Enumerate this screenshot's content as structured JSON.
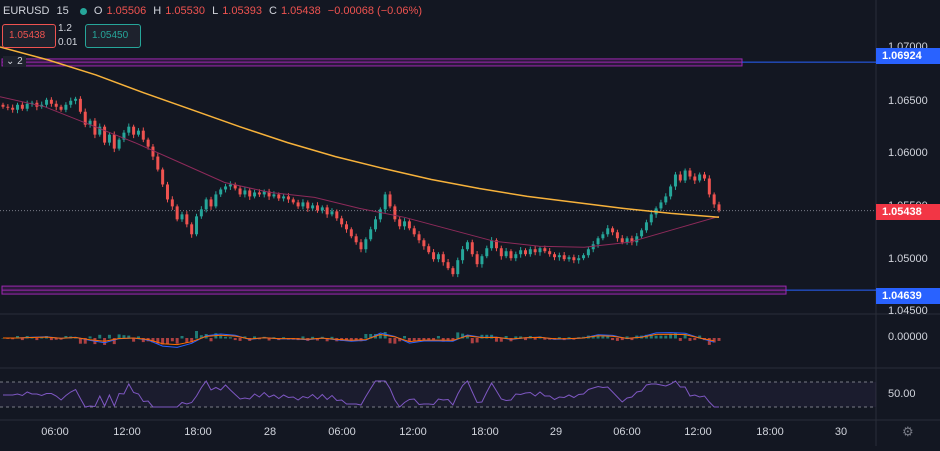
{
  "header": {
    "symbol": "EURUSD",
    "interval": "15",
    "open_label": "O",
    "open": "1.05506",
    "high_label": "H",
    "high": "1.05530",
    "low_label": "L",
    "low": "1.05393",
    "close_label": "C",
    "close": "1.05438",
    "change": "−0.00068 (−0.06%)"
  },
  "order": {
    "sell_price": "1.05438",
    "buy_price": "1.05450",
    "spread_top": "1.2",
    "spread_bottom": "0.01",
    "collapse_label": "2"
  },
  "price_axis": {
    "ticks": [
      "1.07000",
      "1.06500",
      "1.06000",
      "1.05500",
      "1.05000",
      "1.04500"
    ],
    "tags": {
      "upper_zone": "1.06924",
      "current": "1.05438",
      "lower_zone": "1.04639"
    }
  },
  "macd_axis": {
    "label": "0.00000"
  },
  "rsi_axis": {
    "label": "50.00"
  },
  "time_axis": [
    "06:00",
    "12:00",
    "18:00",
    "28",
    "06:00",
    "12:00",
    "18:00",
    "29",
    "06:00",
    "12:00",
    "18:00",
    "30"
  ],
  "colors": {
    "up": "#26a69a",
    "down": "#ef5350",
    "ma200": "#f7b23b",
    "ma50": "#8e2a5a",
    "zone": "#9c27b0",
    "rsi": "#7e57c2",
    "tag_blue": "#2962ff",
    "tag_red": "#f23645"
  },
  "icons": {
    "settings": "gear-icon",
    "dot": "market-status-dot"
  },
  "chart_data": {
    "type": "candlestick",
    "price_range": [
      1.0442,
      1.0715
    ],
    "current_price": 1.05438,
    "zones": [
      {
        "low": 1.06895,
        "high": 1.0696
      },
      {
        "low": 1.046,
        "high": 1.0468
      }
    ],
    "closes": [
      1.0648,
      1.0647,
      1.0645,
      1.065,
      1.0646,
      1.0651,
      1.0652,
      1.0648,
      1.065,
      1.0655,
      1.0651,
      1.0648,
      1.0645,
      1.065,
      1.0654,
      1.0656,
      1.0643,
      1.063,
      1.0634,
      1.062,
      1.0628,
      1.0612,
      1.062,
      1.0606,
      1.0615,
      1.0622,
      1.0628,
      1.062,
      1.0624,
      1.0615,
      1.0608,
      1.0598,
      1.0585,
      1.057,
      1.0555,
      1.0548,
      1.0535,
      1.054,
      1.053,
      1.052,
      1.0538,
      1.0545,
      1.0555,
      1.0548,
      1.056,
      1.0565,
      1.0568,
      1.057,
      1.0566,
      1.056,
      1.0564,
      1.0558,
      1.0562,
      1.056,
      1.0563,
      1.0558,
      1.056,
      1.0556,
      1.0558,
      1.0555,
      1.0552,
      1.0548,
      1.0552,
      1.0546,
      1.0549,
      1.0544,
      1.0547,
      1.054,
      1.0543,
      1.0536,
      1.053,
      1.0525,
      1.0518,
      1.0512,
      1.0505,
      1.0515,
      1.0525,
      1.0535,
      1.0545,
      1.056,
      1.0548,
      1.0535,
      1.0528,
      1.0533,
      1.0526,
      1.052,
      1.0514,
      1.0508,
      1.0502,
      1.0495,
      1.05,
      1.0492,
      1.0486,
      1.048,
      1.0494,
      1.0505,
      1.0512,
      1.05,
      1.049,
      1.0498,
      1.0506,
      1.0514,
      1.0506,
      1.0498,
      1.0503,
      1.0496,
      1.05,
      1.0504,
      1.05,
      1.0505,
      1.0502,
      1.0506,
      1.0503,
      1.05,
      1.0497,
      1.0499,
      1.0495,
      1.0497,
      1.0494,
      1.0496,
      1.0499,
      1.0505,
      1.051,
      1.0516,
      1.052,
      1.0526,
      1.0522,
      1.0516,
      1.0512,
      1.0516,
      1.0512,
      1.0518,
      1.0524,
      1.0532,
      1.054,
      1.0546,
      1.0552,
      1.0558,
      1.0568,
      1.058,
      1.0574,
      1.0584,
      1.0578,
      1.0574,
      1.058,
      1.0576,
      1.056,
      1.055,
      1.0544
    ],
    "ma200": [
      1.0708,
      1.0695,
      1.068,
      1.0662,
      1.0645,
      1.0628,
      1.0612,
      1.0598,
      1.0586,
      1.0575,
      1.0566,
      1.0558,
      1.0552,
      1.0546,
      1.0541,
      1.0537
    ],
    "ma50": [
      1.0658,
      1.0648,
      1.063,
      1.0612,
      1.0592,
      1.0572,
      1.0562,
      1.0557,
      1.0546,
      1.0537,
      1.0525,
      1.0513,
      1.0508,
      1.0507,
      1.0512,
      1.0525,
      1.0538
    ]
  }
}
